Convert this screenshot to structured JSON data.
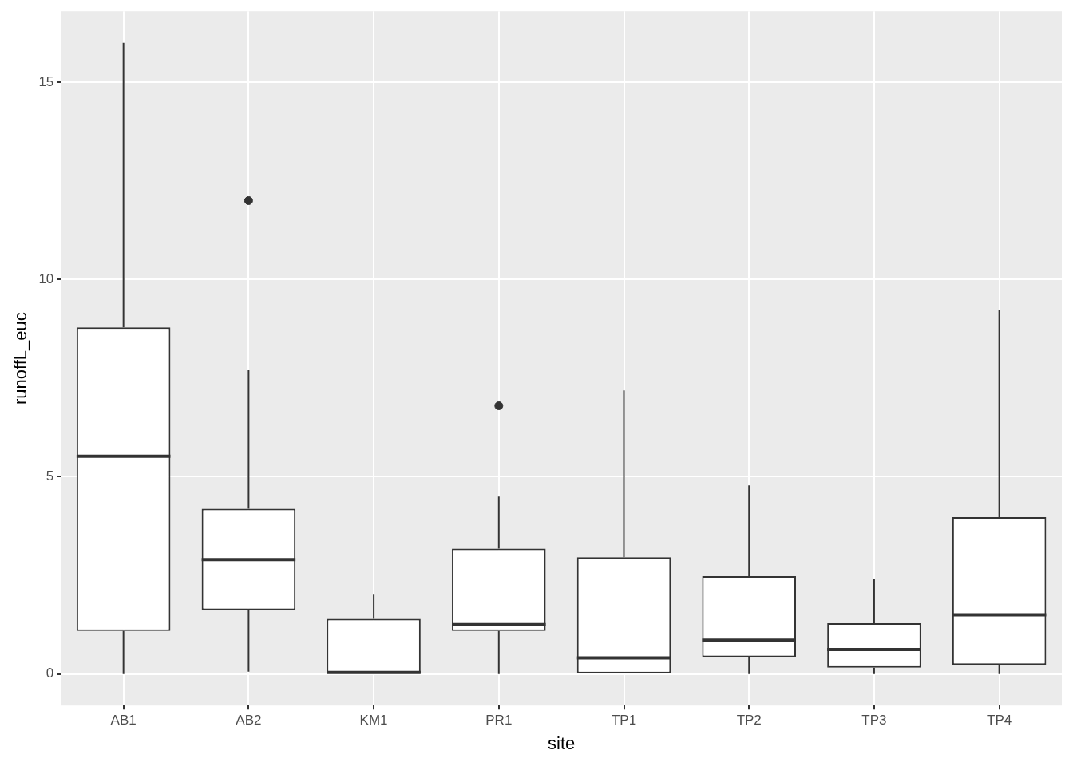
{
  "chart_data": {
    "type": "boxplot",
    "x_label": "site",
    "y_label": "runoffL_euc",
    "categories": [
      "AB1",
      "AB2",
      "KM1",
      "PR1",
      "TP1",
      "TP2",
      "TP3",
      "TP4"
    ],
    "whisker_low": [
      0,
      0.06,
      0,
      0,
      0,
      0,
      0,
      0
    ],
    "q1": [
      1.09,
      1.62,
      0,
      1.09,
      0,
      0.43,
      0.16,
      0.23
    ],
    "median": [
      5.52,
      2.9,
      0.04,
      1.25,
      0.41,
      0.86,
      0.62,
      1.5
    ],
    "q3": [
      8.79,
      4.19,
      1.4,
      3.18,
      2.96,
      2.48,
      1.29,
      3.98
    ],
    "whisker_high": [
      16.0,
      7.7,
      2.01,
      4.5,
      7.19,
      4.78,
      2.4,
      9.24
    ],
    "outliers": [
      [],
      [
        12.0
      ],
      [],
      [
        6.8
      ],
      [],
      [],
      [],
      []
    ],
    "color": "#333333",
    "ylim": [
      -0.8,
      16.8
    ],
    "yticks": [
      0,
      5,
      10,
      15
    ],
    "grid": true
  }
}
